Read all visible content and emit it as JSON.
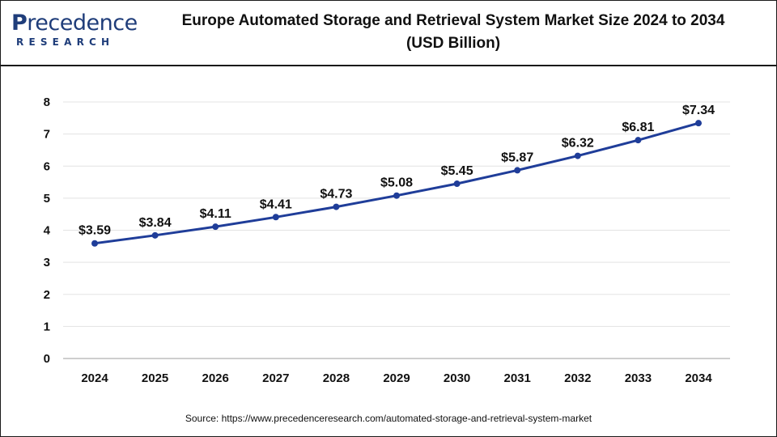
{
  "header": {
    "logo_main_first": "P",
    "logo_main_rest": "recedence",
    "logo_sub": "RESEARCH",
    "title_line1": "Europe Automated Storage and Retrieval System Market Size 2024 to 2034",
    "title_line2": "(USD Billion)"
  },
  "footer": {
    "source_label": "Source:",
    "source_url": "https://www.precedenceresearch.com/automated-storage-and-retrieval-system-market"
  },
  "colors": {
    "line": "#1f3d99",
    "brand": "#1f3d7a"
  },
  "chart_data": {
    "type": "line",
    "title": "Europe Automated Storage and Retrieval System Market Size 2024 to 2034 (USD Billion)",
    "xlabel": "",
    "ylabel": "",
    "categories": [
      "2024",
      "2025",
      "2026",
      "2027",
      "2028",
      "2029",
      "2030",
      "2031",
      "2032",
      "2033",
      "2034"
    ],
    "values": [
      3.59,
      3.84,
      4.11,
      4.41,
      4.73,
      5.08,
      5.45,
      5.87,
      6.32,
      6.81,
      7.34
    ],
    "data_labels": [
      "$3.59",
      "$3.84",
      "$4.11",
      "$4.41",
      "$4.73",
      "$5.08",
      "$5.45",
      "$5.87",
      "$6.32",
      "$6.81",
      "$7.34"
    ],
    "y_ticks": [
      0,
      1,
      2,
      3,
      4,
      5,
      6,
      7,
      8
    ],
    "ylim": [
      0,
      8
    ],
    "grid": true
  }
}
